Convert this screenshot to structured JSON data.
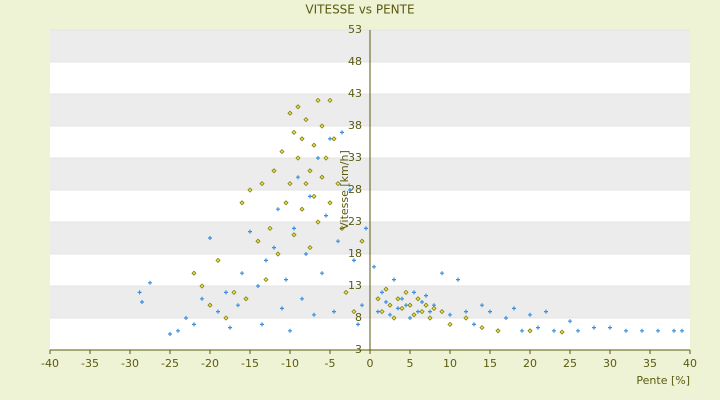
{
  "chart_data": {
    "type": "scatter",
    "title": "VITESSE vs PENTE",
    "x_label": "Pente [%]",
    "y_label": "Vitesse [km/h]",
    "xlim": [
      -40,
      40
    ],
    "xticks": [
      -40,
      -35,
      -30,
      -25,
      -20,
      -15,
      -10,
      -5,
      0,
      5,
      10,
      15,
      20,
      25,
      30,
      35,
      40
    ],
    "ylim": [
      3,
      53
    ],
    "yticks": [
      3,
      8,
      13,
      18,
      23,
      28,
      33,
      38,
      43,
      48,
      53
    ],
    "grid": true,
    "series": [
      {
        "color": "#3d8fdc",
        "x": [
          -28.5,
          -28.8,
          -27.5,
          -25,
          -24,
          -23,
          -22,
          -21,
          -20,
          -19,
          -18,
          -17.5,
          -16.5,
          -16,
          -15,
          -14,
          -13.5,
          -13,
          -12,
          -11.5,
          -11,
          -10.5,
          -10,
          -9.5,
          -9,
          -8.5,
          -8,
          -7.5,
          -7,
          -6.5,
          -6,
          -5.5,
          -5,
          -4.5,
          -4,
          -3.5,
          -3,
          -2.5,
          -2,
          -1.5,
          -1,
          -0.5,
          0.5,
          1,
          1.5,
          2,
          2.5,
          3,
          3.5,
          4,
          4.5,
          5,
          5.5,
          6,
          6.5,
          7,
          7.5,
          8,
          9,
          10,
          11,
          12,
          13,
          14,
          15,
          16,
          17,
          18,
          19,
          20,
          21,
          22,
          23,
          25,
          26,
          28,
          30,
          32,
          34,
          36,
          38,
          39
        ],
        "values": [
          10.5,
          12,
          13.5,
          5.5,
          6,
          8,
          7,
          11,
          20.5,
          9,
          12,
          6.5,
          10,
          15,
          21.5,
          13,
          7,
          17,
          19,
          25,
          9.5,
          14,
          6,
          22,
          30,
          11,
          18,
          27,
          8.5,
          33,
          15,
          24,
          36,
          9,
          20,
          37,
          12,
          28,
          17,
          7,
          10,
          22,
          16,
          9,
          12,
          10.5,
          8.5,
          14,
          9.5,
          11,
          10,
          8,
          12,
          9,
          10.5,
          11.5,
          9,
          10,
          15,
          8.5,
          14,
          9,
          7,
          10,
          9,
          6,
          8,
          9.5,
          6,
          8.5,
          6.5,
          9,
          6,
          7.5,
          6,
          6.5,
          6.5,
          6,
          6,
          6,
          6,
          6
        ]
      },
      {
        "color": "#7d7d12",
        "x": [
          -22,
          -21,
          -20,
          -19,
          -18,
          -17,
          -16,
          -15.5,
          -15,
          -14,
          -13.5,
          -13,
          -12.5,
          -12,
          -11.5,
          -11,
          -10.5,
          -10,
          -10,
          -9.5,
          -9.5,
          -9,
          -9,
          -8.5,
          -8.5,
          -8,
          -8,
          -7.5,
          -7.5,
          -7,
          -7,
          -6.5,
          -6.5,
          -6,
          -6,
          -5.5,
          -5,
          -5,
          -4.5,
          -4,
          -3.5,
          -3,
          -2,
          -1,
          1,
          1.5,
          2,
          2.5,
          3,
          3.5,
          4,
          4.5,
          5,
          5.5,
          6,
          6.5,
          7,
          7.5,
          8,
          9,
          10,
          12,
          14,
          16,
          20,
          24
        ],
        "values": [
          15,
          13,
          10,
          17,
          8,
          12,
          26,
          11,
          28,
          20,
          29,
          14,
          22,
          31,
          18,
          34,
          26,
          40,
          29,
          37,
          21,
          33,
          41,
          25,
          36,
          29,
          39,
          31,
          19,
          35,
          27,
          42,
          23,
          38,
          30,
          33,
          42,
          26,
          36,
          29,
          22,
          12,
          9,
          20,
          11,
          9,
          12.5,
          10,
          8,
          11,
          9.5,
          12,
          10,
          8.5,
          11,
          9,
          10,
          8,
          9.5,
          9,
          7,
          8,
          6.5,
          6,
          6,
          5.8
        ]
      }
    ]
  }
}
